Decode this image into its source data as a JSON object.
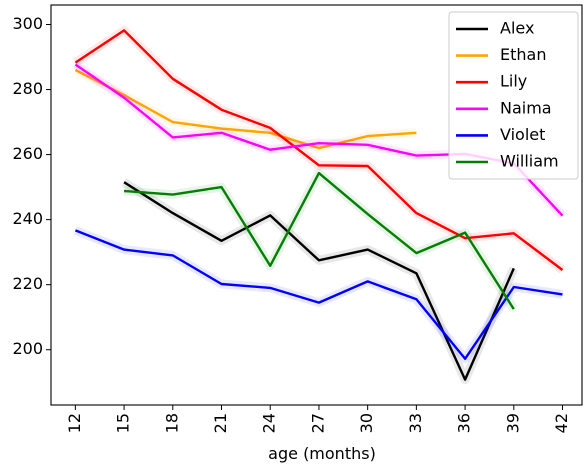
{
  "chart_data": {
    "type": "line",
    "title": "",
    "xlabel": "age (months)",
    "ylabel": "",
    "x": [
      12,
      15,
      18,
      21,
      24,
      27,
      30,
      33,
      36,
      39,
      42
    ],
    "xlim": [
      10.5,
      43.2
    ],
    "ylim": [
      183,
      306
    ],
    "yticks": [
      200,
      220,
      240,
      260,
      280,
      300
    ],
    "grid": false,
    "legend": "top-right",
    "series": [
      {
        "name": "Alex",
        "color": "#000000",
        "values": [
          null,
          251.5,
          242,
          233.5,
          241.3,
          227.5,
          230.8,
          223.5,
          190.8,
          225,
          null
        ]
      },
      {
        "name": "Ethan",
        "color": "#ffa500",
        "values": [
          286,
          278.3,
          270,
          268,
          266.7,
          262,
          265.7,
          266.7,
          null,
          null,
          null
        ]
      },
      {
        "name": "Lily",
        "color": "#ff0000",
        "values": [
          288.3,
          298.2,
          283.3,
          273.8,
          268.2,
          256.7,
          256.5,
          242,
          234.3,
          235.8,
          224.5
        ]
      },
      {
        "name": "Naima",
        "color": "#ff00ff",
        "values": [
          287.7,
          277.5,
          265.3,
          266.7,
          261.5,
          263.5,
          263,
          259.7,
          260.2,
          257.3,
          241.2
        ]
      },
      {
        "name": "Violet",
        "color": "#0000ff",
        "values": [
          236.7,
          230.8,
          229,
          220.2,
          219,
          214.5,
          221,
          215.5,
          197.2,
          219.3,
          217
        ]
      },
      {
        "name": "William",
        "color": "#008000",
        "values": [
          null,
          248.8,
          247.7,
          250,
          225.8,
          254.3,
          241.7,
          229.7,
          236,
          212.5,
          null
        ]
      }
    ]
  }
}
